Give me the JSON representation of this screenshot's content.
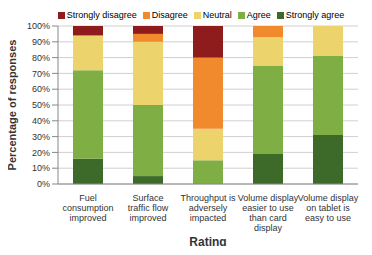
{
  "chart_data": {
    "type": "bar",
    "stacked": true,
    "grid": true,
    "legend": "top",
    "x_label": "Rating",
    "y_label": "Percentage of responses",
    "categories": [
      "Fuel consumption improved",
      "Surface traffic flow improved",
      "Throughput is adversely impacted",
      "Volume display easier to use than card display",
      "Volume display on tablet is easy to use"
    ],
    "series": [
      {
        "name": "Strongly disagree",
        "color": "#8e1c1c",
        "values": [
          6,
          5,
          20,
          0,
          0
        ]
      },
      {
        "name": "Disagree",
        "color": "#f08a2c",
        "values": [
          0,
          5,
          45,
          7,
          0
        ]
      },
      {
        "name": "Neutral",
        "color": "#ecd36c",
        "values": [
          22,
          40,
          20,
          18,
          19
        ]
      },
      {
        "name": "Agree",
        "color": "#7fae45",
        "values": [
          56,
          45,
          15,
          56,
          50
        ]
      },
      {
        "name": "Strongly agree",
        "color": "#3d6a29",
        "values": [
          16,
          5,
          0,
          19,
          31
        ]
      }
    ],
    "ylim": [
      0,
      100
    ],
    "yticks": [
      {
        "value": 0,
        "label": "0%"
      },
      {
        "value": 10,
        "label": "10%"
      },
      {
        "value": 20,
        "label": "20%"
      },
      {
        "value": 30,
        "label": "30%"
      },
      {
        "value": 40,
        "label": "40%"
      },
      {
        "value": 50,
        "label": "50%"
      },
      {
        "value": 60,
        "label": "60%"
      },
      {
        "value": 70,
        "label": "70%"
      },
      {
        "value": 80,
        "label": "80%"
      },
      {
        "value": 90,
        "label": "90%"
      },
      {
        "value": 100,
        "label": "100%"
      }
    ]
  }
}
